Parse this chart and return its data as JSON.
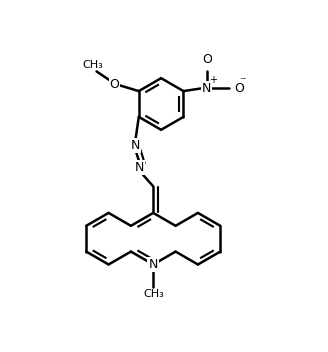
{
  "bg_color": "#ffffff",
  "line_color": "#000000",
  "line_width": 1.8,
  "fig_width": 3.28,
  "fig_height": 3.52,
  "dpi": 100,
  "xlim": [
    0,
    9.0
  ],
  "ylim": [
    0,
    9.5
  ]
}
